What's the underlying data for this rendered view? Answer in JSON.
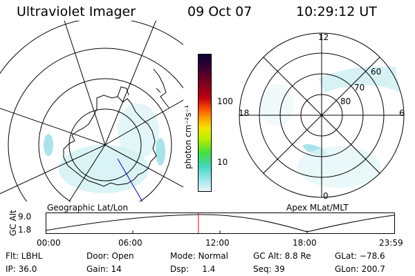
{
  "header": {
    "instrument": "Ultraviolet Imager",
    "date": "09 Oct 07",
    "time": "10:29:12 UT"
  },
  "colorbar": {
    "unit_label": "photon cm⁻²s⁻¹",
    "ticks": [
      "100",
      "10"
    ]
  },
  "left_map": {
    "caption": "Geographic Lat/Lon"
  },
  "right_map": {
    "caption": "Apex MLat/MLT",
    "mlt_labels": [
      "12",
      "18",
      "6",
      "0"
    ],
    "mlat_labels": [
      "60",
      "70",
      "80"
    ]
  },
  "altitude_plot": {
    "ylabel": "GC Alt",
    "y_ticks": [
      "9.0",
      "1.8"
    ],
    "x_ticks": [
      "00:00",
      "06:00",
      "12:00",
      "18:00",
      "23:59"
    ],
    "current_time_fraction": 0.437
  },
  "status": {
    "filter": "Flt: LBHL",
    "ip": "IP: 36.0",
    "door": "Door: Open",
    "gain": "Gain: 14",
    "mode": "Mode: Normal",
    "dsp": "Dsp:     1.4",
    "gc_alt": "GC Alt: 8.8 Re",
    "seq": "Seq: 39",
    "glat": "GLat: −78.6",
    "glon": "GLon: 200.7"
  },
  "colors": {
    "marker": "#ff0000",
    "aurora": "#aee8ee"
  }
}
